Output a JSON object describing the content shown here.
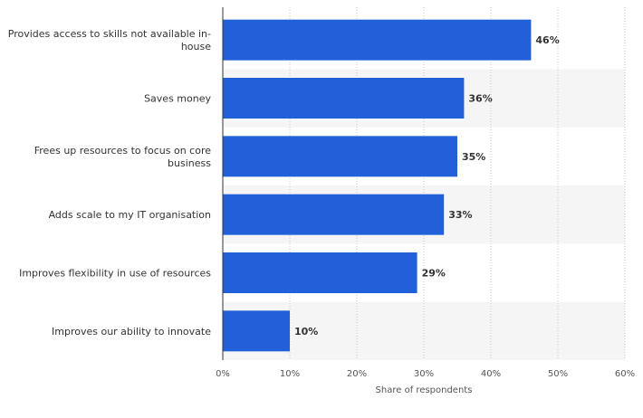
{
  "chart_data": {
    "type": "bar",
    "orientation": "horizontal",
    "categories": [
      [
        "Provides access to skills not available in-",
        "house"
      ],
      [
        "Saves money"
      ],
      [
        "Frees up resources to focus on core",
        "business"
      ],
      [
        "Adds scale to my IT organisation"
      ],
      [
        "Improves flexibility in use of resources"
      ],
      [
        "Improves our ability to innovate"
      ]
    ],
    "values": [
      46,
      36,
      35,
      33,
      29,
      10
    ],
    "value_labels": [
      "46%",
      "36%",
      "35%",
      "33%",
      "29%",
      "10%"
    ],
    "xlabel": "Share of respondents",
    "xlim": [
      0,
      60
    ],
    "xticks": [
      0,
      10,
      20,
      30,
      40,
      50,
      60
    ],
    "xtick_labels": [
      "0%",
      "10%",
      "20%",
      "30%",
      "40%",
      "50%",
      "60%"
    ],
    "grid": true,
    "bar_color": "#2160d9",
    "band_color": "#f5f5f5"
  }
}
